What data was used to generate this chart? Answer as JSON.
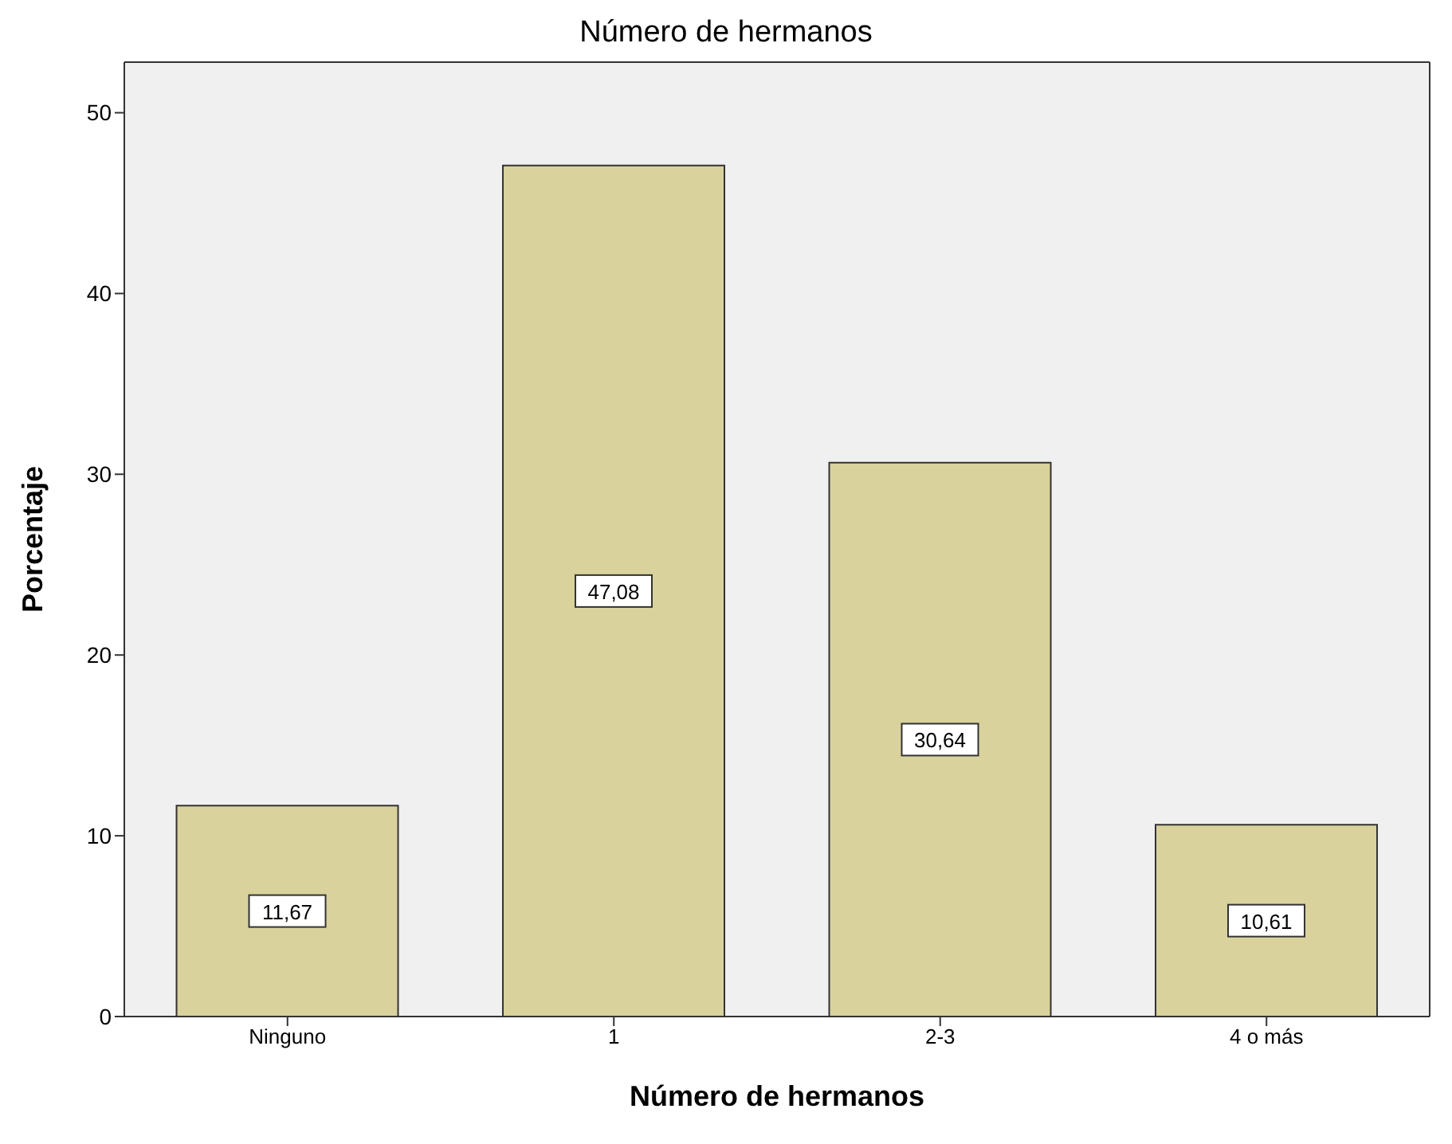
{
  "chart_data": {
    "type": "bar",
    "title": "Número de hermanos",
    "xlabel": "Número de hermanos",
    "ylabel": "Porcentaje",
    "categories": [
      "Ninguno",
      "1",
      "2-3",
      "4 o más"
    ],
    "values": [
      11.67,
      47.08,
      30.64,
      10.61
    ],
    "value_labels": [
      "11,67",
      "47,08",
      "30,64",
      "10,61"
    ],
    "color": "#d9d29c",
    "ylim": [
      0,
      52.8
    ],
    "yticks": [
      0,
      10,
      20,
      30,
      40,
      50
    ],
    "grid": false
  }
}
